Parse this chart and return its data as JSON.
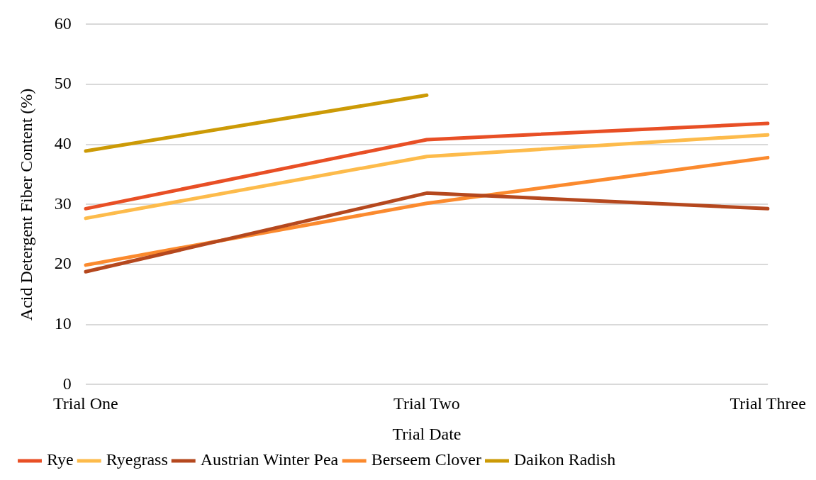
{
  "chart_data": {
    "type": "line",
    "xlabel": "Trial Date",
    "ylabel": "Acid Detergent Fiber Content (%)",
    "categories": [
      "Trial One",
      "Trial Two",
      "Trial Three"
    ],
    "series": [
      {
        "name": "Rye",
        "color": "#e84f25",
        "values": [
          29.3,
          40.8,
          43.5
        ]
      },
      {
        "name": "Ryegrass",
        "color": "#fdbb4b",
        "values": [
          27.7,
          38.0,
          41.6
        ]
      },
      {
        "name": "Austrian Winter Pea",
        "color": "#b5481e",
        "values": [
          18.8,
          31.9,
          29.3
        ]
      },
      {
        "name": "Berseem Clover",
        "color": "#fb8a2e",
        "values": [
          19.9,
          30.2,
          37.8
        ]
      },
      {
        "name": "Daikon Radish",
        "color": "#cc9a06",
        "values": [
          38.9,
          48.2,
          null
        ]
      }
    ],
    "ylim": [
      0,
      60
    ],
    "yticks": [
      0,
      10,
      20,
      30,
      40,
      50,
      60
    ],
    "grid": "y",
    "legend": "bottom",
    "marker": "none",
    "line_style": "solid"
  }
}
